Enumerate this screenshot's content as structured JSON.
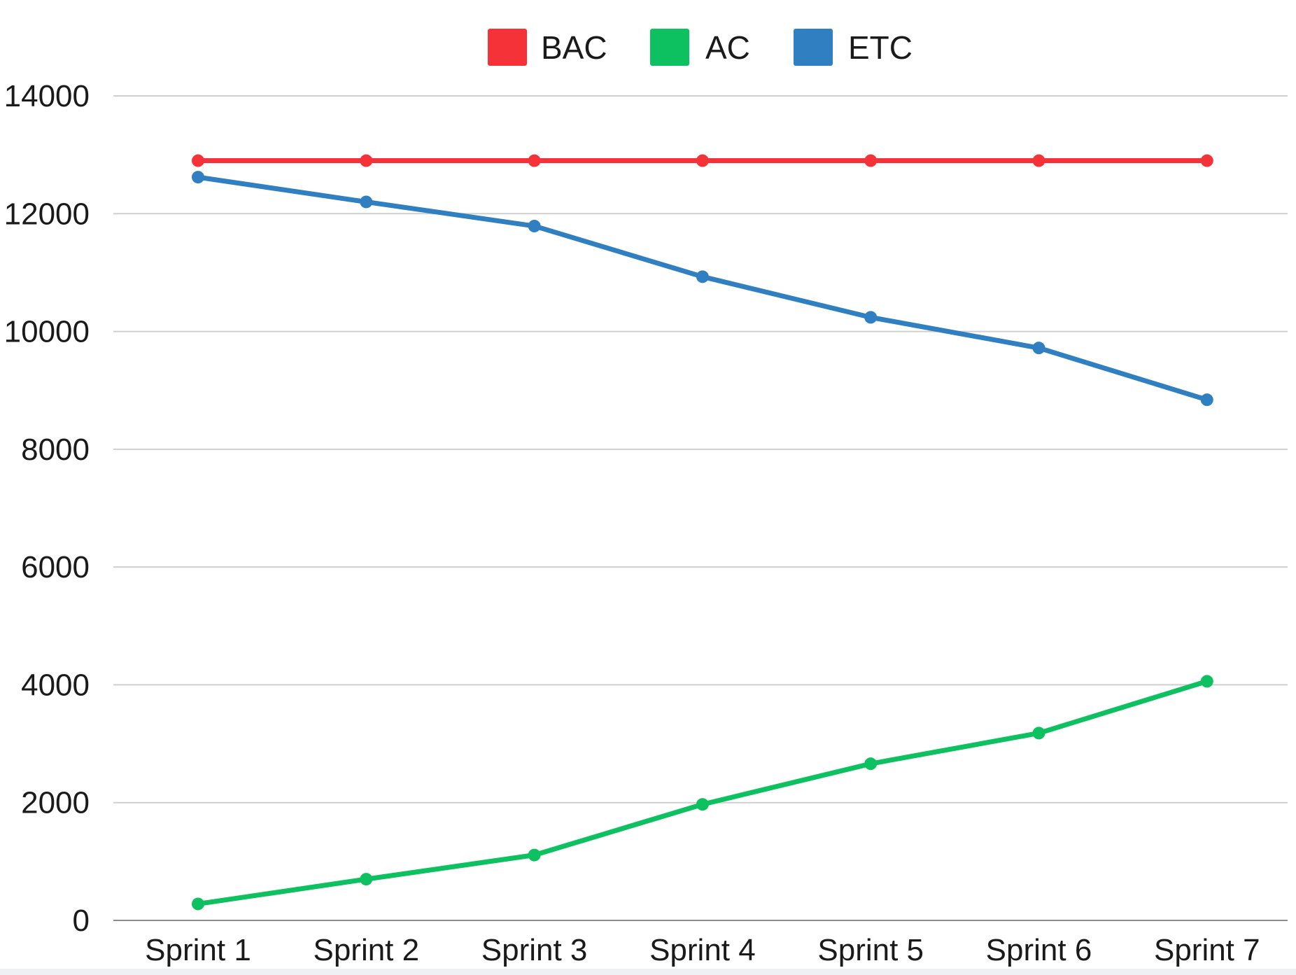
{
  "chart_data": {
    "type": "line",
    "title": "",
    "xlabel": "",
    "ylabel": "",
    "categories": [
      "Sprint 1",
      "Sprint 2",
      "Sprint 3",
      "Sprint 4",
      "Sprint 5",
      "Sprint 6",
      "Sprint 7"
    ],
    "ylim": [
      0,
      14000
    ],
    "yticks": [
      0,
      2000,
      4000,
      6000,
      8000,
      10000,
      12000,
      14000
    ],
    "grid": true,
    "legend_position": "top-center",
    "series": [
      {
        "name": "BAC",
        "color": "#f53237",
        "values": [
          12900,
          12900,
          12900,
          12900,
          12900,
          12900,
          12900
        ]
      },
      {
        "name": "AC",
        "color": "#0ec160",
        "values": [
          280,
          700,
          1110,
          1970,
          2660,
          3180,
          4060
        ]
      },
      {
        "name": "ETC",
        "color": "#2f7fc1",
        "values": [
          12620,
          12200,
          11790,
          10930,
          10240,
          9720,
          8840
        ]
      }
    ]
  }
}
